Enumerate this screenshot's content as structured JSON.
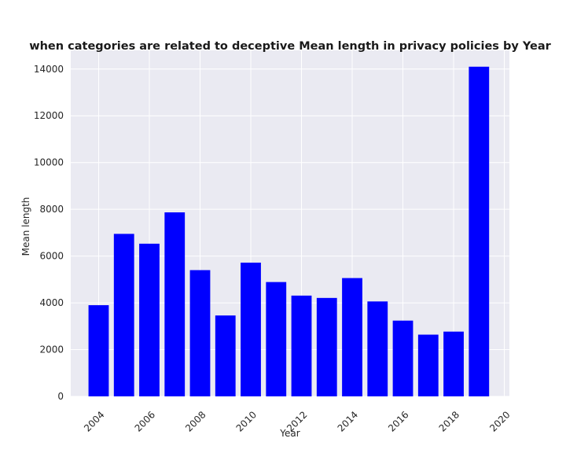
{
  "chart_data": {
    "type": "bar",
    "title": "when categories are related to deceptive Mean length in privacy policies by Year",
    "xlabel": "Year",
    "ylabel": "Mean length",
    "x": [
      2004,
      2005,
      2006,
      2007,
      2008,
      2009,
      2010,
      2011,
      2012,
      2013,
      2014,
      2015,
      2016,
      2017,
      2018,
      2019
    ],
    "values": [
      3900,
      6950,
      6530,
      7870,
      5400,
      3460,
      5720,
      4890,
      4310,
      4210,
      5060,
      4060,
      3240,
      2640,
      2770,
      14100
    ],
    "xticks": [
      2004,
      2006,
      2008,
      2010,
      2012,
      2014,
      2016,
      2018,
      2020
    ],
    "yticks": [
      0,
      2000,
      4000,
      6000,
      8000,
      10000,
      12000,
      14000
    ],
    "xlim": [
      2002.9,
      2020.2
    ],
    "ylim": [
      0,
      14800
    ],
    "bar_color": "#0000ff",
    "plot_background": "#eaeaf2",
    "grid_color": "#ffffff",
    "grid": true,
    "legend": "none"
  }
}
